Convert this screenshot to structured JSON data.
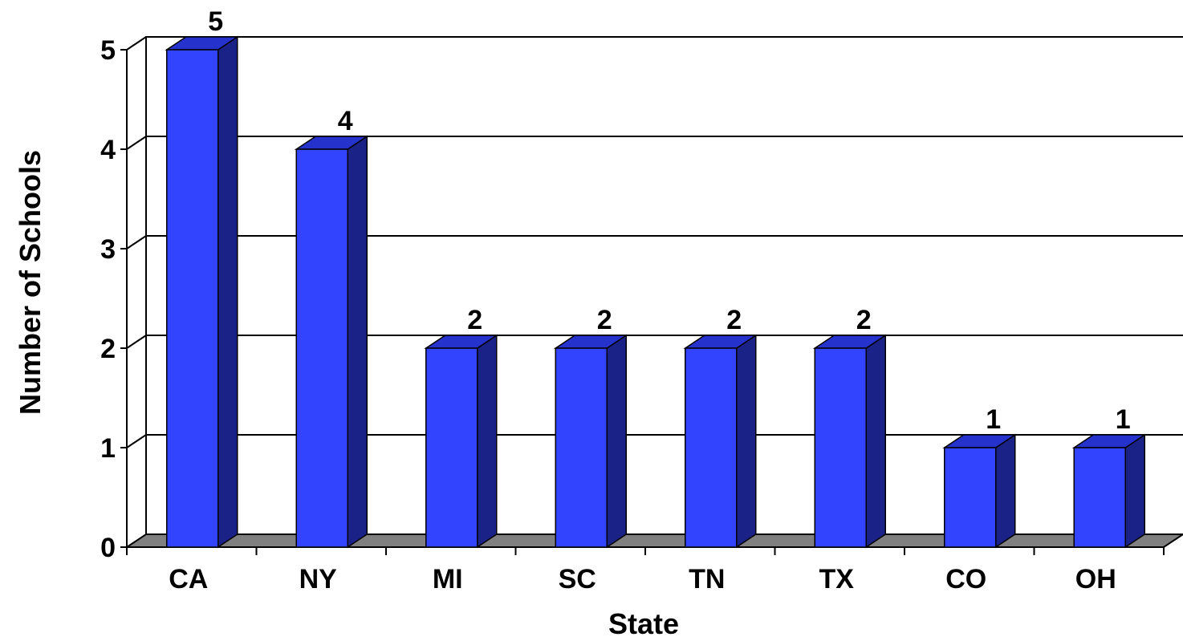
{
  "chart_data": {
    "type": "bar",
    "style": "3d",
    "title": "",
    "xlabel": "State",
    "ylabel": "Number of Schools",
    "categories": [
      "CA",
      "NY",
      "MI",
      "SC",
      "TN",
      "TX",
      "CO",
      "OH"
    ],
    "values": [
      5,
      4,
      2,
      2,
      2,
      2,
      1,
      1
    ],
    "ylim": [
      0,
      5
    ],
    "yticks": [
      0,
      1,
      2,
      3,
      4,
      5
    ],
    "data_labels": true,
    "grid": true,
    "legend": "none",
    "colors": {
      "bar_front": "#3344ff",
      "bar_side": "#1a2288",
      "bar_top": "#2533cc",
      "floor": "#808080",
      "gridline": "#000000"
    }
  }
}
